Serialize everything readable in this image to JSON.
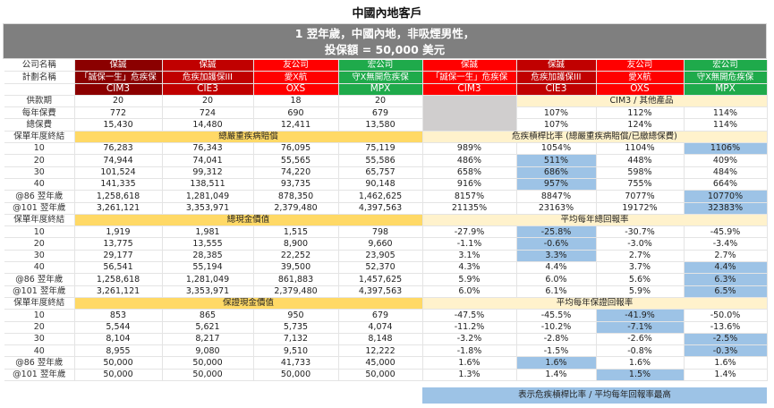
{
  "title": "中國內地客戶",
  "banner": {
    "line1": "1 翌年歲，中國內地，非吸煙男性，",
    "line2": "投保額 = 50,000 美元"
  },
  "labels": {
    "company": "公司名稱",
    "plan": "計劃名稱",
    "payment_term": "供款期",
    "annual_premium": "每年保費",
    "total_premium": "總保費",
    "policy_year_end": "保單年度終結"
  },
  "products": [
    {
      "company": "保誠",
      "plan": "「誠保一生」危疾保",
      "code": "CIM3"
    },
    {
      "company": "保誠",
      "plan": "危疾加護保III",
      "code": "CIE3"
    },
    {
      "company": "友公司",
      "plan": "愛X航",
      "code": "OXS"
    },
    {
      "company": "宏公司",
      "plan": "守X無開危疾保",
      "code": "MPX"
    }
  ],
  "basic": {
    "payment_term": [
      "20",
      "20",
      "18",
      "20"
    ],
    "annual_premium": [
      "772",
      "724",
      "690",
      "679"
    ],
    "total_premium": [
      "15,430",
      "14,480",
      "12,411",
      "13,580"
    ]
  },
  "ratio_header": "CIM3 / 其他產品",
  "premium_ratios": {
    "annual": [
      "107%",
      "112%",
      "114%"
    ],
    "total": [
      "107%",
      "124%",
      "114%"
    ]
  },
  "sections": [
    {
      "left_title": "總嚴重疾病賠償",
      "right_title": "危疾槓桿比率 (總嚴重疾病賠償/已繳總保費)",
      "rows": [
        {
          "label": "10",
          "values": [
            "76,283",
            "76,343",
            "76,095",
            "75,119"
          ],
          "ratios": [
            "989%",
            "1054%",
            "1104%",
            "1106%"
          ],
          "highlight": 3
        },
        {
          "label": "20",
          "values": [
            "74,944",
            "74,041",
            "55,565",
            "55,586"
          ],
          "ratios": [
            "486%",
            "511%",
            "448%",
            "409%"
          ],
          "highlight": 1
        },
        {
          "label": "30",
          "values": [
            "101,524",
            "99,312",
            "74,220",
            "65,757"
          ],
          "ratios": [
            "658%",
            "686%",
            "598%",
            "484%"
          ],
          "highlight": 1
        },
        {
          "label": "40",
          "values": [
            "141,335",
            "138,511",
            "93,735",
            "90,148"
          ],
          "ratios": [
            "916%",
            "957%",
            "755%",
            "664%"
          ],
          "highlight": 1
        },
        {
          "label": "@86 翌年歲",
          "values": [
            "1,258,618",
            "1,281,049",
            "878,350",
            "1,462,625"
          ],
          "ratios": [
            "8157%",
            "8847%",
            "7077%",
            "10770%"
          ],
          "highlight": 3
        },
        {
          "label": "@101 翌年歲",
          "values": [
            "3,261,121",
            "3,353,971",
            "2,379,480",
            "4,397,563"
          ],
          "ratios": [
            "21135%",
            "23163%",
            "19172%",
            "32383%"
          ],
          "highlight": 3
        }
      ]
    },
    {
      "left_title": "總現金價值",
      "right_title": "平均每年總回報率",
      "rows": [
        {
          "label": "10",
          "values": [
            "1,919",
            "1,981",
            "1,515",
            "798"
          ],
          "ratios": [
            "-27.9%",
            "-25.8%",
            "-30.7%",
            "-45.9%"
          ],
          "highlight": 1
        },
        {
          "label": "20",
          "values": [
            "13,775",
            "13,555",
            "8,900",
            "9,660"
          ],
          "ratios": [
            "-1.1%",
            "-0.6%",
            "-3.0%",
            "-3.4%"
          ],
          "highlight": 1
        },
        {
          "label": "30",
          "values": [
            "29,177",
            "28,385",
            "22,252",
            "23,905"
          ],
          "ratios": [
            "3.1%",
            "3.3%",
            "2.7%",
            "2.7%"
          ],
          "highlight": 1
        },
        {
          "label": "40",
          "values": [
            "56,541",
            "55,194",
            "39,500",
            "52,370"
          ],
          "ratios": [
            "4.3%",
            "4.4%",
            "3.7%",
            "4.4%"
          ],
          "highlight": 3
        },
        {
          "label": "@86 翌年歲",
          "values": [
            "1,258,618",
            "1,281,049",
            "861,883",
            "1,457,625"
          ],
          "ratios": [
            "5.9%",
            "6.0%",
            "5.6%",
            "6.3%"
          ],
          "highlight": 3
        },
        {
          "label": "@101 翌年歲",
          "values": [
            "3,261,121",
            "3,353,971",
            "2,379,480",
            "4,397,563"
          ],
          "ratios": [
            "6.0%",
            "6.1%",
            "5.9%",
            "6.5%"
          ],
          "highlight": 3
        }
      ]
    },
    {
      "left_title": "保證現金價值",
      "right_title": "平均每年保證回報率",
      "rows": [
        {
          "label": "10",
          "values": [
            "853",
            "865",
            "950",
            "679"
          ],
          "ratios": [
            "-47.5%",
            "-45.5%",
            "-41.9%",
            "-50.0%"
          ],
          "highlight": 2
        },
        {
          "label": "20",
          "values": [
            "5,544",
            "5,621",
            "5,735",
            "4,074"
          ],
          "ratios": [
            "-11.2%",
            "-10.2%",
            "-7.1%",
            "-13.6%"
          ],
          "highlight": 2
        },
        {
          "label": "30",
          "values": [
            "8,104",
            "8,217",
            "7,132",
            "8,148"
          ],
          "ratios": [
            "-3.2%",
            "-2.8%",
            "-2.6%",
            "-2.5%"
          ],
          "highlight": 3
        },
        {
          "label": "40",
          "values": [
            "8,955",
            "9,080",
            "9,510",
            "12,222"
          ],
          "ratios": [
            "-1.8%",
            "-1.5%",
            "-0.8%",
            "-0.3%"
          ],
          "highlight": 3
        },
        {
          "label": "@86 翌年歲",
          "values": [
            "50,000",
            "50,000",
            "41,733",
            "45,000"
          ],
          "ratios": [
            "1.6%",
            "1.6%",
            "1.6%",
            "1.6%"
          ],
          "highlight": 1
        },
        {
          "label": "@101 翌年歲",
          "values": [
            "50,000",
            "50,000",
            "50,000",
            "50,000"
          ],
          "ratios": [
            "1.3%",
            "1.4%",
            "1.5%",
            "1.4%"
          ],
          "highlight": 2
        }
      ]
    }
  ],
  "legend": "表示危疾槓桿比率 / 平均每年回報率最高",
  "colors": {
    "dark_red": "#8b0000",
    "mid_red": "#c00000",
    "red": "#ff0000",
    "green": "#1faa4b",
    "section_yellow": "#ffd966",
    "section_light": "#fff2cc",
    "highlight_blue": "#9dc3e6",
    "banner_grey": "#7f7f7f"
  }
}
